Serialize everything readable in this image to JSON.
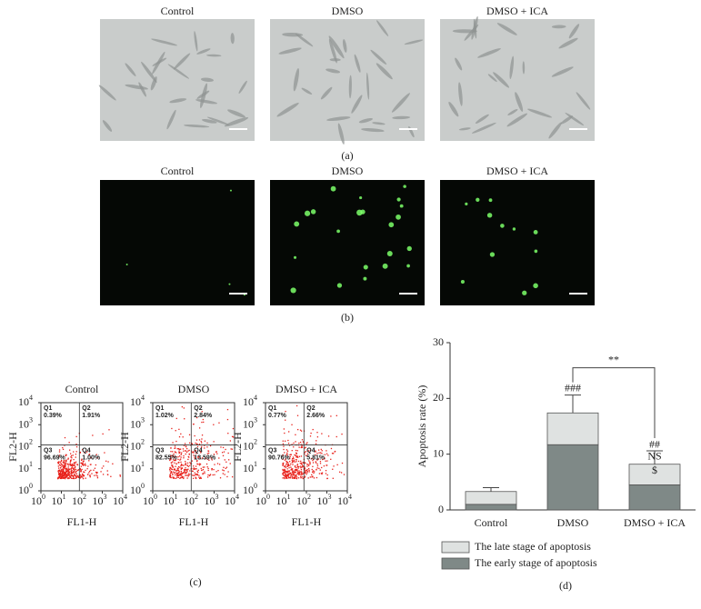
{
  "panel_a": {
    "titles": [
      "Control",
      "DMSO",
      "DMSO + ICA"
    ],
    "label": "(a)"
  },
  "panel_b": {
    "titles": [
      "Control",
      "DMSO",
      "DMSO + ICA"
    ],
    "label": "(b)"
  },
  "panel_c": {
    "label": "(c)",
    "x_label": "FL1-H",
    "y_label": "FL2-H",
    "tick_base": "10",
    "tick_exponents": [
      0,
      1,
      2,
      3,
      4
    ],
    "plots": [
      {
        "title": "Control",
        "quadrants": [
          [
            "Q1",
            "0.39%"
          ],
          [
            "Q2",
            "1.91%"
          ],
          [
            "Q3",
            "96.69%"
          ],
          [
            "Q4",
            "1.00%"
          ]
        ]
      },
      {
        "title": "DMSO",
        "quadrants": [
          [
            "Q1",
            "1.02%"
          ],
          [
            "Q2",
            "2.84%"
          ],
          [
            "Q3",
            "82.55%"
          ],
          [
            "Q4",
            "13.59%"
          ]
        ]
      },
      {
        "title": "DMSO + ICA",
        "quadrants": [
          [
            "Q1",
            "0.77%"
          ],
          [
            "Q2",
            "2.66%"
          ],
          [
            "Q3",
            "90.76%"
          ],
          [
            "Q4",
            "5.81%"
          ]
        ]
      }
    ]
  },
  "panel_d_label": "(d)",
  "chart_data": {
    "type": "bar",
    "stacked": true,
    "ylabel": "Apoptosis rate (%)",
    "categories": [
      "Control",
      "DMSO",
      "DMSO + ICA"
    ],
    "series": [
      {
        "name": "The early stage of apoptosis",
        "color": "#7f8987",
        "values": [
          1,
          11.7,
          4.5
        ],
        "errors": [
          0.1,
          3.6,
          1.3
        ]
      },
      {
        "name": "The late stage of apoptosis",
        "color": "#dfe2e1",
        "values": [
          2.3,
          5.7,
          3.7
        ],
        "errors": [
          0.7,
          3.2,
          2.4
        ]
      }
    ],
    "ylim": [
      0,
      30
    ],
    "yticks": [
      0,
      10,
      20,
      30
    ],
    "annotations": [
      "###",
      "##",
      "NS",
      "$",
      "**"
    ]
  }
}
